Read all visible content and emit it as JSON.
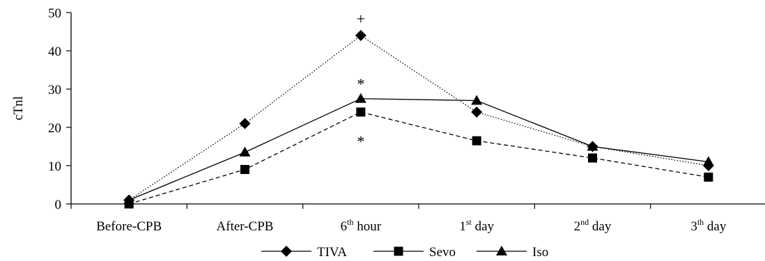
{
  "chart_data": {
    "type": "line",
    "title": "",
    "xlabel": "",
    "ylabel": "cTnl",
    "ylim": [
      0,
      50
    ],
    "yticks": [
      0,
      10,
      20,
      30,
      40,
      50
    ],
    "categories": [
      {
        "text": "Before-CPB",
        "sup": "",
        "rest": ""
      },
      {
        "text": "After-CPB",
        "sup": "",
        "rest": ""
      },
      {
        "text": "6",
        "sup": "th",
        "rest": " hour"
      },
      {
        "text": "1",
        "sup": "st",
        "rest": " day"
      },
      {
        "text": "2",
        "sup": "nd",
        "rest": " day"
      },
      {
        "text": "3",
        "sup": "th",
        "rest": " day"
      }
    ],
    "series": [
      {
        "name": "TIVA",
        "values": [
          1,
          21,
          44,
          24,
          15,
          10
        ],
        "marker": "diamond",
        "line": "dotted"
      },
      {
        "name": "Sevo",
        "values": [
          0,
          9,
          24,
          16.5,
          12,
          7
        ],
        "marker": "square",
        "line": "dashed"
      },
      {
        "name": "Iso",
        "values": [
          1,
          13.5,
          27.5,
          27,
          15,
          11
        ],
        "marker": "triangle",
        "line": "solid"
      }
    ],
    "annotations": [
      {
        "text": "+",
        "category_index": 2,
        "y": 48.5
      },
      {
        "text": "*",
        "category_index": 2,
        "y": 31.5
      },
      {
        "text": "*",
        "category_index": 2,
        "y": 16.5
      }
    ],
    "legend_position": "bottom",
    "grid": false
  },
  "colors": {
    "ink": "#000000",
    "background": "#ffffff"
  }
}
